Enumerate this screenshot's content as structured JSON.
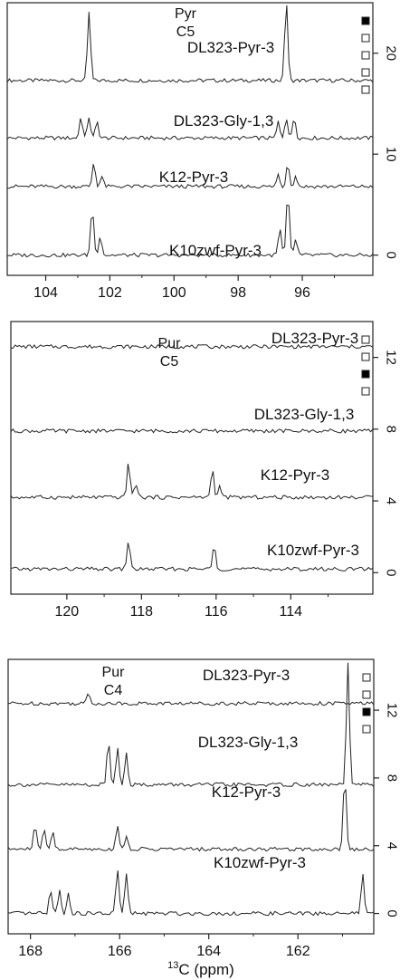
{
  "figure": {
    "xlabel_sup": "13",
    "xlabel_main": "C (ppm)"
  },
  "chart_data": [
    {
      "type": "line",
      "panel": "top",
      "title": "",
      "annotation": [
        "Pyr",
        "C5"
      ],
      "xlabel": "",
      "ylabel": "",
      "xlim": [
        105.2,
        93.8
      ],
      "ylim": [
        -2,
        25
      ],
      "x_reversed": true,
      "xticks": [
        104,
        102,
        100,
        98,
        96
      ],
      "yticks": [
        0,
        10,
        20
      ],
      "ytick_labels": [
        "0",
        "10",
        "20"
      ],
      "legend_markers": [
        "filled",
        "open",
        "open",
        "open",
        "open"
      ],
      "series": [
        {
          "name": "DL323-Pyr-3",
          "offset": 17.3,
          "peaks": [
            {
              "x": 102.65,
              "h": 6.8
            },
            {
              "x": 96.5,
              "h": 8.0
            }
          ]
        },
        {
          "name": "DL323-Gly-1,3",
          "offset": 11.6,
          "peaks": [
            {
              "x": 102.9,
              "h": 2.1
            },
            {
              "x": 102.65,
              "h": 2.1
            },
            {
              "x": 102.4,
              "h": 1.6
            },
            {
              "x": 96.75,
              "h": 1.6
            },
            {
              "x": 96.5,
              "h": 2.1
            },
            {
              "x": 96.25,
              "h": 2.1
            }
          ]
        },
        {
          "name": "K12-Pyr-3",
          "offset": 6.8,
          "peaks": [
            {
              "x": 102.5,
              "h": 2.4
            },
            {
              "x": 102.25,
              "h": 1.0
            },
            {
              "x": 96.75,
              "h": 1.2
            },
            {
              "x": 96.45,
              "h": 2.4
            },
            {
              "x": 96.2,
              "h": 1.0
            }
          ]
        },
        {
          "name": "K10zwf-Pyr-3",
          "offset": 0.0,
          "peaks": [
            {
              "x": 102.55,
              "h": 4.8
            },
            {
              "x": 102.3,
              "h": 2.0
            },
            {
              "x": 96.7,
              "h": 2.6
            },
            {
              "x": 96.45,
              "h": 6.2
            },
            {
              "x": 96.2,
              "h": 1.6
            }
          ]
        }
      ]
    },
    {
      "type": "line",
      "panel": "middle",
      "title": "",
      "annotation": [
        "Pur",
        "C5"
      ],
      "xlabel": "",
      "ylabel": "",
      "xlim": [
        121.5,
        111.8
      ],
      "ylim": [
        -1.2,
        14
      ],
      "x_reversed": true,
      "xticks": [
        120,
        118,
        116,
        114
      ],
      "yticks": [
        0,
        4,
        8,
        12
      ],
      "ytick_labels": [
        "0",
        "4",
        "8",
        "12"
      ],
      "legend_markers": [
        "open",
        "open",
        "filled",
        "open"
      ],
      "series": [
        {
          "name": "DL323-Pyr-3",
          "offset": 12.6,
          "peaks": []
        },
        {
          "name": "DL323-Gly-1,3",
          "offset": 7.9,
          "peaks": []
        },
        {
          "name": "K12-Pyr-3",
          "offset": 4.2,
          "peaks": [
            {
              "x": 118.35,
              "h": 2.0
            },
            {
              "x": 118.15,
              "h": 0.8
            },
            {
              "x": 116.1,
              "h": 1.6
            },
            {
              "x": 115.9,
              "h": 0.6
            }
          ]
        },
        {
          "name": "K10zwf-Pyr-3",
          "offset": 0.2,
          "peaks": [
            {
              "x": 118.35,
              "h": 1.6
            },
            {
              "x": 116.05,
              "h": 1.4
            }
          ]
        }
      ]
    },
    {
      "type": "line",
      "panel": "bottom",
      "title": "",
      "annotation": [
        "Pur",
        "C4"
      ],
      "xlabel": "¹³C (ppm)",
      "ylabel": "",
      "xlim": [
        168.5,
        160.3
      ],
      "ylim": [
        -1.2,
        15
      ],
      "x_reversed": true,
      "xticks": [
        168,
        166,
        164,
        162
      ],
      "yticks": [
        0,
        4,
        8,
        12
      ],
      "ytick_labels": [
        "0",
        "4",
        "8",
        "12"
      ],
      "legend_markers": [
        "open",
        "open",
        "filled",
        "open"
      ],
      "series": [
        {
          "name": "DL323-Pyr-3",
          "offset": 12.4,
          "peaks": [
            {
              "x": 166.7,
              "h": 0.6
            }
          ]
        },
        {
          "name": "DL323-Gly-1,3",
          "offset": 7.6,
          "peaks": [
            {
              "x": 166.25,
              "h": 2.6
            },
            {
              "x": 166.05,
              "h": 2.2
            },
            {
              "x": 165.85,
              "h": 2.0
            },
            {
              "x": 160.88,
              "h": 7.2
            }
          ]
        },
        {
          "name": "K12-Pyr-3",
          "offset": 3.8,
          "peaks": [
            {
              "x": 167.9,
              "h": 1.4
            },
            {
              "x": 167.7,
              "h": 1.2
            },
            {
              "x": 167.5,
              "h": 1.0
            },
            {
              "x": 166.05,
              "h": 1.4
            },
            {
              "x": 165.85,
              "h": 0.8
            },
            {
              "x": 160.95,
              "h": 4.4
            }
          ]
        },
        {
          "name": "K10zwf-Pyr-3",
          "offset": 0.0,
          "peaks": [
            {
              "x": 167.55,
              "h": 1.4
            },
            {
              "x": 167.35,
              "h": 1.4
            },
            {
              "x": 167.15,
              "h": 1.2
            },
            {
              "x": 166.05,
              "h": 2.6
            },
            {
              "x": 165.85,
              "h": 2.4
            },
            {
              "x": 160.55,
              "h": 2.3
            }
          ]
        }
      ]
    }
  ]
}
